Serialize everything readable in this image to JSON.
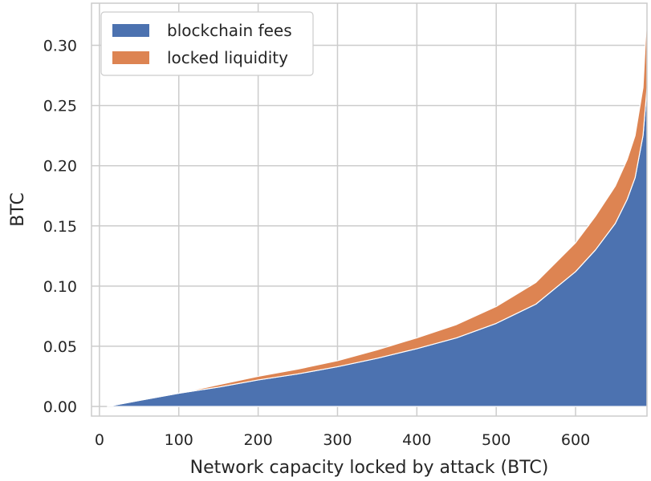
{
  "chart_data": {
    "type": "area",
    "xlabel": "Network capacity locked by attack (BTC)",
    "ylabel": "BTC",
    "xlim": [
      -10,
      690
    ],
    "ylim": [
      -0.008,
      0.335
    ],
    "xticks": [
      0,
      100,
      200,
      300,
      400,
      500,
      600
    ],
    "xtick_labels": [
      "0",
      "100",
      "200",
      "300",
      "400",
      "500",
      "600"
    ],
    "yticks": [
      0.0,
      0.05,
      0.1,
      0.15,
      0.2,
      0.25,
      0.3
    ],
    "ytick_labels": [
      "0.00",
      "0.05",
      "0.10",
      "0.15",
      "0.20",
      "0.25",
      "0.30"
    ],
    "grid": true,
    "legend_position": "top-left",
    "stacked": true,
    "x": [
      10,
      50,
      100,
      150,
      200,
      250,
      300,
      350,
      400,
      450,
      500,
      550,
      600,
      625,
      650,
      665,
      675,
      685,
      690
    ],
    "series": [
      {
        "name": "blockchain fees",
        "color": "#4c72b0",
        "values": [
          0.0,
          0.005,
          0.011,
          0.016,
          0.022,
          0.027,
          0.033,
          0.04,
          0.048,
          0.057,
          0.069,
          0.085,
          0.112,
          0.13,
          0.152,
          0.172,
          0.19,
          0.225,
          0.265
        ]
      },
      {
        "name": "locked liquidity",
        "color": "#dd8452",
        "values": [
          0.0,
          0.0,
          0.0,
          0.002,
          0.003,
          0.004,
          0.005,
          0.007,
          0.009,
          0.011,
          0.014,
          0.018,
          0.024,
          0.028,
          0.031,
          0.033,
          0.035,
          0.04,
          0.063
        ]
      }
    ]
  }
}
